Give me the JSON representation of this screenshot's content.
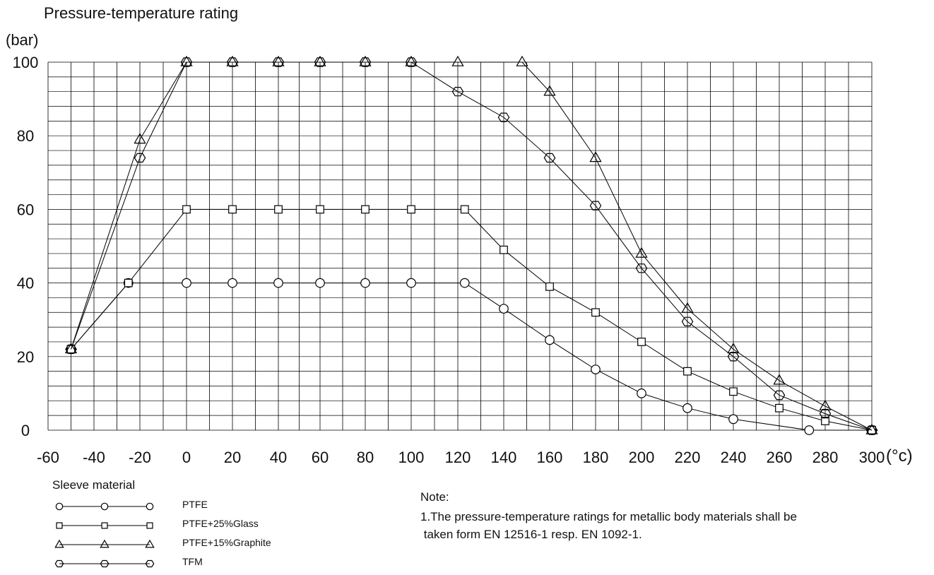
{
  "chart_data": {
    "type": "line",
    "title": "Pressure-temperature rating",
    "ylabel": "(bar)",
    "xlabel": "(°c)",
    "xlim": [
      -60,
      300
    ],
    "ylim": [
      0,
      100
    ],
    "x_ticks": [
      -60,
      -40,
      -20,
      0,
      20,
      40,
      60,
      80,
      100,
      120,
      140,
      160,
      180,
      200,
      220,
      240,
      260,
      280,
      300
    ],
    "y_ticks": [
      0,
      20,
      40,
      60,
      80,
      100
    ],
    "grid": true,
    "legend_title": "Sleeve material",
    "legend_position": "bottom-left",
    "series": [
      {
        "name": "PTFE",
        "marker": "circle",
        "x": [
          -50,
          -25,
          0,
          20,
          40,
          60,
          80,
          100,
          123,
          140,
          160,
          180,
          200,
          220,
          240,
          273,
          300
        ],
        "y": [
          22,
          40,
          40,
          40,
          40,
          40,
          40,
          40,
          40,
          33,
          24.5,
          16.5,
          10,
          6,
          3,
          0,
          0
        ]
      },
      {
        "name": "PTFE+25%Glass",
        "marker": "square",
        "x": [
          -50,
          -25,
          0,
          20,
          40,
          60,
          80,
          100,
          123,
          140,
          160,
          180,
          200,
          220,
          240,
          260,
          280,
          300
        ],
        "y": [
          22,
          40,
          60,
          60,
          60,
          60,
          60,
          60,
          60,
          49,
          39,
          32,
          24,
          16,
          10.5,
          6,
          2.5,
          0
        ]
      },
      {
        "name": "PTFE+15%Graphite",
        "marker": "triangle",
        "x": [
          -50,
          -20,
          0,
          20,
          40,
          60,
          80,
          100,
          120,
          148,
          160,
          180,
          200,
          220,
          240,
          260,
          280,
          300
        ],
        "y": [
          22,
          79,
          100,
          100,
          100,
          100,
          100,
          100,
          100,
          100,
          92,
          74,
          48,
          33,
          22,
          13.5,
          6.5,
          0
        ]
      },
      {
        "name": "TFM",
        "marker": "hexagon",
        "x": [
          -50,
          -20,
          0,
          20,
          40,
          60,
          80,
          100,
          120,
          140,
          160,
          180,
          200,
          220,
          240,
          260,
          280,
          300
        ],
        "y": [
          22,
          74,
          100,
          100,
          100,
          100,
          100,
          100,
          92,
          85,
          74,
          61,
          44,
          29.5,
          20,
          9.5,
          4.5,
          0
        ]
      }
    ]
  },
  "note": {
    "title": "Note:",
    "line1": "1.The pressure-temperature ratings for metallic body materials shall be",
    "line2": " taken form EN 12516-1 resp. EN 1092-1."
  }
}
